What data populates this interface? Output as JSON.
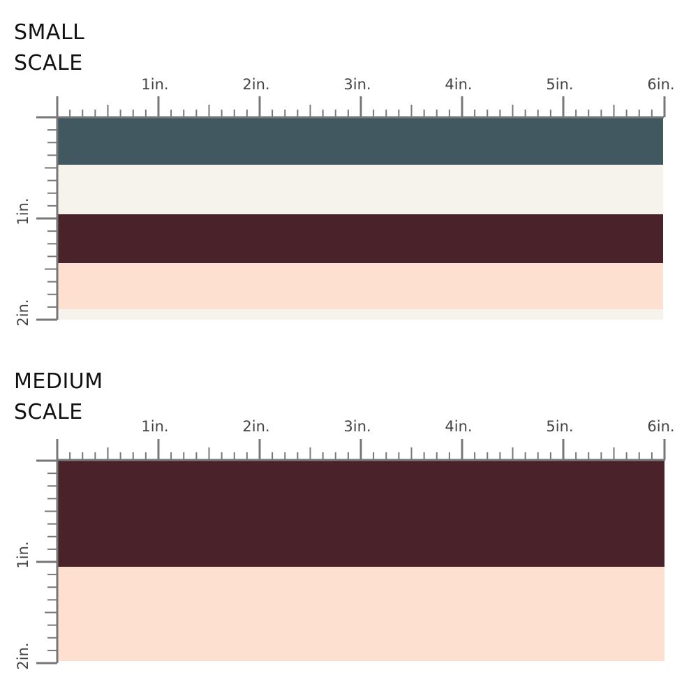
{
  "small": {
    "title_line1": "SMALL",
    "title_line2": "SCALE",
    "ruler_h_labels": [
      "1in.",
      "2in.",
      "3in.",
      "4in.",
      "5in.",
      "6in."
    ],
    "ruler_v_labels": [
      "1in.",
      "2in."
    ],
    "stripes": [
      {
        "name": "slate-blue",
        "color": "#425861"
      },
      {
        "name": "cream",
        "color": "#f6f3ec"
      },
      {
        "name": "burgundy",
        "color": "#4a2229"
      },
      {
        "name": "peach",
        "color": "#fde0d0"
      },
      {
        "name": "cream",
        "color": "#f6f3ec"
      }
    ]
  },
  "medium": {
    "title_line1": "MEDIUM",
    "title_line2": "SCALE",
    "ruler_h_labels": [
      "1in.",
      "2in.",
      "3in.",
      "4in.",
      "5in.",
      "6in."
    ],
    "ruler_v_labels": [
      "1in.",
      "2in."
    ],
    "stripes": [
      {
        "name": "burgundy",
        "color": "#4a2229"
      },
      {
        "name": "peach",
        "color": "#fde0d0"
      }
    ]
  },
  "ruler_color": "#777777"
}
